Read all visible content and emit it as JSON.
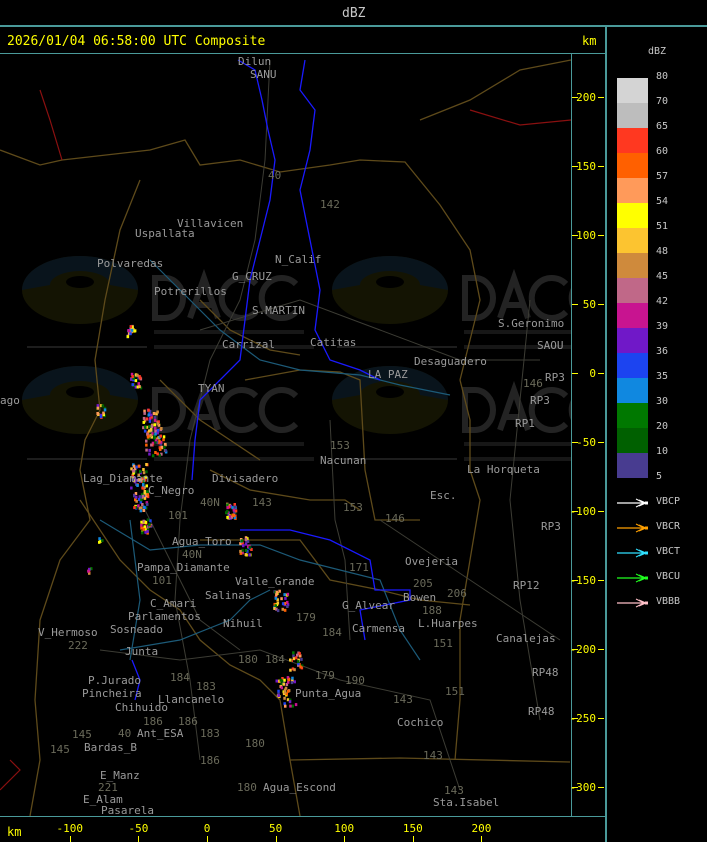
{
  "top_bar": {
    "title": "dBZ"
  },
  "header": {
    "title": "2026/01/04 06:58:00 UTC Composite",
    "y_unit": "km"
  },
  "axes": {
    "x_unit": "km",
    "x_ticks": [
      "-100",
      "-50",
      "0",
      "50",
      "100",
      "150",
      "200"
    ],
    "y_ticks": [
      "200",
      "150",
      "100",
      "50",
      "0",
      "-50",
      "-100",
      "-150",
      "-200",
      "-250",
      "-300"
    ]
  },
  "legend": {
    "unit": "dBZ",
    "levels": [
      {
        "value": "80",
        "color": "#d4d4d4"
      },
      {
        "value": "70",
        "color": "#bdbdbd"
      },
      {
        "value": "65",
        "color": "#ff3820"
      },
      {
        "value": "60",
        "color": "#ff6000"
      },
      {
        "value": "57",
        "color": "#ff9a5a"
      },
      {
        "value": "54",
        "color": "#ffff00"
      },
      {
        "value": "51",
        "color": "#fcc430"
      },
      {
        "value": "48",
        "color": "#cf8a3c"
      },
      {
        "value": "45",
        "color": "#c06888"
      },
      {
        "value": "42",
        "color": "#c81490"
      },
      {
        "value": "39",
        "color": "#7018c8"
      },
      {
        "value": "36",
        "color": "#1c44f0"
      },
      {
        "value": "35",
        "color": "#1088e0"
      },
      {
        "value": "30",
        "color": "#007800"
      },
      {
        "value": "20",
        "color": "#006000"
      },
      {
        "value": "10",
        "color": "#483c90"
      }
    ],
    "last_value": "5",
    "radars": [
      {
        "name": "VBCP",
        "color": "#ffffff"
      },
      {
        "name": "VBCR",
        "color": "#ffa000"
      },
      {
        "name": "VBCT",
        "color": "#30e0ff"
      },
      {
        "name": "VBCU",
        "color": "#20ff20"
      },
      {
        "name": "VBBB",
        "color": "#ffc0c8"
      }
    ]
  },
  "watermark": {
    "brand": "DACC",
    "line1": "Dirección de Agricultura",
    "line2": "y Contingencias Climáticas",
    "url": "http://www.contingencias.mendoza.gov.ar"
  },
  "map_labels": [
    "Dilun",
    "SANU",
    "40",
    "142",
    "Villavicen",
    "Uspallata",
    "Polvaredas",
    "N_Calif",
    "Potrerillos",
    "G_CRUZ",
    "S.MARTIN",
    "Carrizal",
    "Catitas",
    "S.Geronimo",
    "SAOU",
    "Desaguadero",
    "LA PAZ",
    "146",
    "RP3",
    "RP3",
    "RP1",
    "ago",
    "153",
    "Nacunan",
    "La Horqueta",
    "Esc.",
    "153",
    "146",
    "RP3",
    "Lag_Diamante",
    "Divisadero",
    "C_Negro",
    "40N",
    "101",
    "143",
    "Agua_Toro",
    "Pampa_Diamante",
    "101",
    "Valle_Grande",
    "Salinas",
    "C_Amari",
    "Parlamentos",
    "Sosneado",
    "Nihuil",
    "V_Hermoso",
    "222",
    "Junta",
    "171",
    "Ovejeria",
    "205",
    "206",
    "RP12",
    "G_Alvear",
    "Bowen",
    "188",
    "L.Huarpes",
    "Carmensa",
    "184",
    "179",
    "Canalejas",
    "RP48",
    "P.Jurado",
    "Pincheira",
    "184",
    "183",
    "Llancanelo",
    "180",
    "184",
    "179",
    "190",
    "Punta_Agua",
    "Chihuido",
    "186",
    "186",
    "40",
    "Ant_ESA",
    "183",
    "145",
    "145",
    "Bardas_B",
    "143",
    "151",
    "151",
    "RP48",
    "Cochico",
    "180",
    "186",
    "143",
    "E_Manz",
    "221",
    "E_Alam",
    "Pasarela",
    "180",
    "Agua_Escond",
    "143",
    "Sta.Isabel",
    "TYAN",
    "40N"
  ]
}
